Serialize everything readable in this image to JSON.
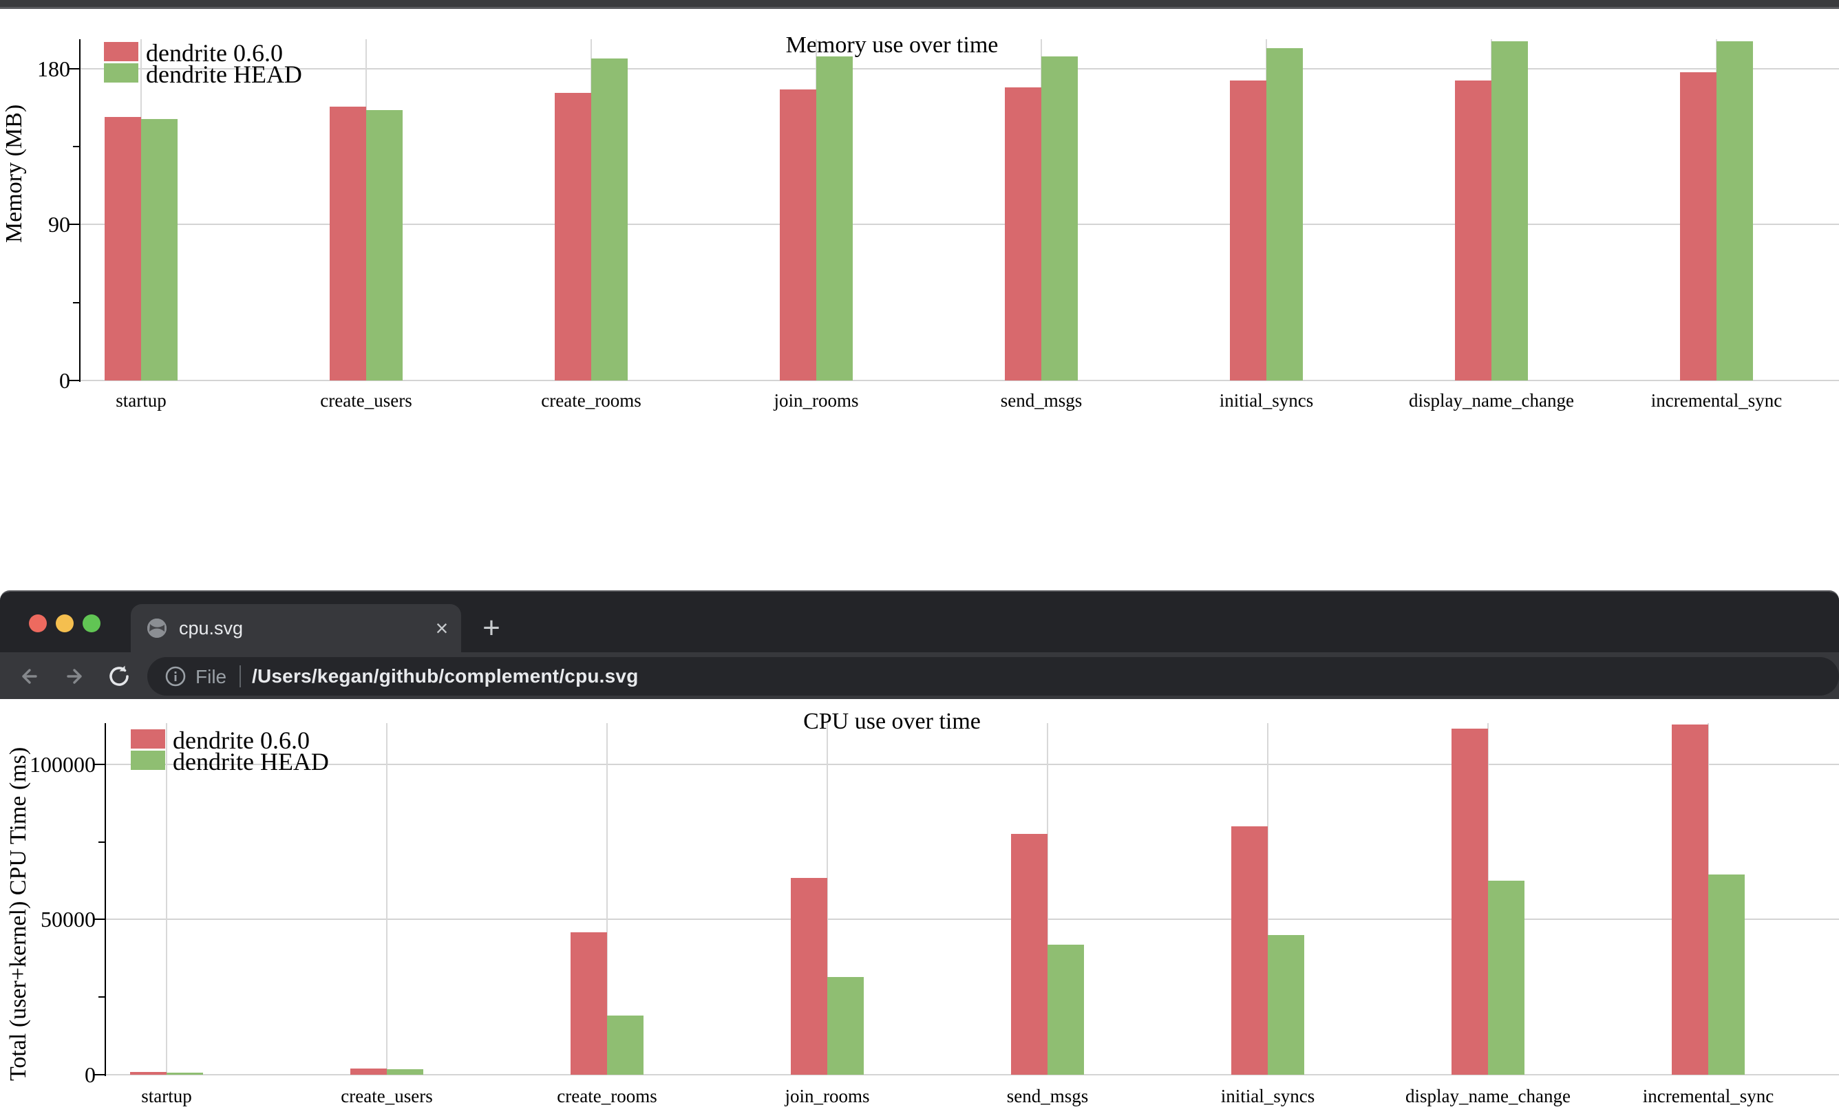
{
  "chart_data": [
    {
      "id": "mem",
      "type": "bar",
      "title": "Memory use over time",
      "ylabel": "Memory (MB)",
      "xlabel": "",
      "categories": [
        "startup",
        "create_users",
        "create_rooms",
        "join_rooms",
        "send_msgs",
        "initial_syncs",
        "display_name_change",
        "incremental_sync"
      ],
      "series": [
        {
          "name": "dendrite 0.6.0",
          "color": "#d8696d",
          "values": [
            152,
            158,
            166,
            168,
            169,
            173,
            173,
            178
          ]
        },
        {
          "name": "dendrite HEAD",
          "color": "#8fbe72",
          "values": [
            151,
            156,
            186,
            187,
            187,
            192,
            196,
            196
          ]
        }
      ],
      "yticks": [
        0,
        90,
        180
      ],
      "minor_ticks": [
        45,
        135
      ],
      "ylim": [
        0,
        197
      ],
      "grid": true,
      "legend_position": "top-left"
    },
    {
      "id": "cpu",
      "type": "bar",
      "title": "CPU use over time",
      "ylabel": "Total (user+kernel) CPU Time (ms)",
      "xlabel": "",
      "categories": [
        "startup",
        "create_users",
        "create_rooms",
        "join_rooms",
        "send_msgs",
        "initial_syncs",
        "display_name_change",
        "incremental_sync"
      ],
      "series": [
        {
          "name": "dendrite 0.6.0",
          "color": "#d8696d",
          "values": [
            800,
            1900,
            46000,
            63500,
            77500,
            80000,
            111500,
            112800
          ]
        },
        {
          "name": "dendrite HEAD",
          "color": "#8fbe72",
          "values": [
            700,
            1800,
            19000,
            31500,
            42000,
            45000,
            62500,
            64500
          ]
        }
      ],
      "yticks": [
        0,
        50000,
        100000
      ],
      "minor_ticks": [
        25000,
        75000
      ],
      "ylim": [
        0,
        113300
      ],
      "grid": true,
      "legend_position": "top-left"
    }
  ],
  "browser": {
    "tab": {
      "title": "cpu.svg",
      "close_label": "×",
      "new_tab_label": "+"
    },
    "address_bar": {
      "scheme_label": "File",
      "url": "/Users/kegan/github/complement/cpu.svg"
    },
    "traffic_lights": {
      "close": "#ed6a5f",
      "minimize": "#f5bf4f",
      "zoom": "#61c554"
    }
  }
}
